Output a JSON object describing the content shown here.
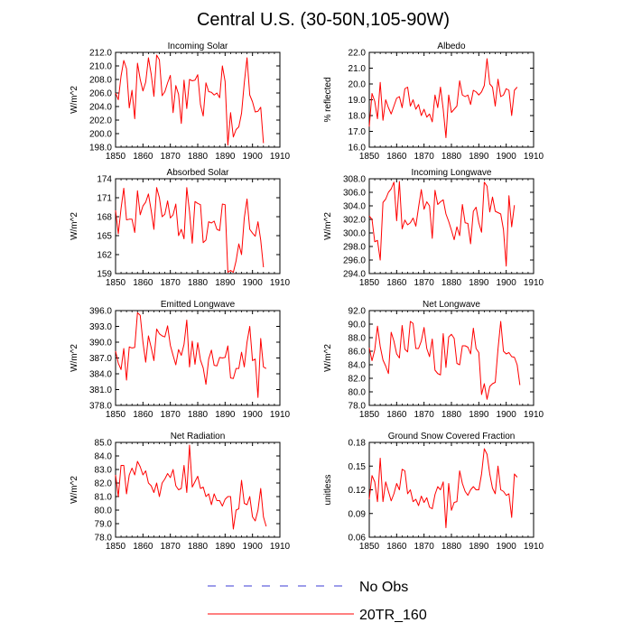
{
  "title": "Central U.S. (30-50N,105-90W)",
  "legend": {
    "items": [
      {
        "label": "No Obs",
        "color": "#3b3bd6",
        "dashed": true
      },
      {
        "label": "20TR_160",
        "color": "#ff0000",
        "dashed": false
      }
    ]
  },
  "chart_data": [
    {
      "type": "line",
      "title": "Incoming Solar",
      "xlabel": "",
      "ylabel": "W/m^2",
      "xlim": [
        1850,
        1910
      ],
      "xticks": [
        1850,
        1860,
        1870,
        1880,
        1890,
        1900,
        1910
      ],
      "ylim": [
        198,
        212
      ],
      "yticks": [
        198.0,
        200.0,
        202.0,
        204.0,
        206.0,
        208.0,
        210.0,
        212.0
      ],
      "ytick_decimals": 1,
      "series": [
        {
          "name": "20TR_160",
          "color": "#ff0000",
          "x_start": 1850,
          "x_step": 1,
          "values": [
            206.0,
            205.0,
            208.5,
            210.8,
            209.6,
            203.8,
            206.4,
            202.2,
            210.4,
            208.0,
            206.3,
            207.6,
            211.2,
            208.8,
            205.5,
            211.6,
            210.9,
            205.6,
            206.2,
            207.5,
            208.6,
            203.1,
            207.1,
            205.8,
            201.5,
            207.9,
            203.7,
            208.0,
            207.8,
            207.9,
            208.7,
            204.3,
            202.6,
            207.5,
            206.2,
            206.1,
            205.7,
            206.0,
            205.3,
            210.0,
            207.7,
            198.3,
            203.1,
            199.5,
            200.6,
            201.0,
            203.0,
            207.5,
            211.2,
            205.7,
            204.7,
            203.2,
            203.3,
            203.9,
            198.6
          ]
        }
      ]
    },
    {
      "type": "line",
      "title": "Albedo",
      "xlabel": "",
      "ylabel": "% reflected",
      "xlim": [
        1850,
        1910
      ],
      "xticks": [
        1850,
        1860,
        1870,
        1880,
        1890,
        1900,
        1910
      ],
      "ylim": [
        16,
        22
      ],
      "yticks": [
        16.0,
        17.0,
        18.0,
        19.0,
        20.0,
        21.0,
        22.0
      ],
      "ytick_decimals": 1,
      "series": [
        {
          "name": "20TR_160",
          "color": "#ff0000",
          "x_start": 1850,
          "x_step": 1,
          "values": [
            17.3,
            19.4,
            18.9,
            17.8,
            20.1,
            17.7,
            19.0,
            18.5,
            18.1,
            18.6,
            19.1,
            19.2,
            18.5,
            19.7,
            19.8,
            18.6,
            19.0,
            18.4,
            18.7,
            18.0,
            18.4,
            17.9,
            18.1,
            17.6,
            19.3,
            18.5,
            19.8,
            18.4,
            16.6,
            19.3,
            18.2,
            18.4,
            18.6,
            20.2,
            19.3,
            19.2,
            19.3,
            18.7,
            19.6,
            19.5,
            19.3,
            19.5,
            19.9,
            21.6,
            20.0,
            19.8,
            18.6,
            20.3,
            19.2,
            19.3,
            19.7,
            19.6,
            18.0,
            19.6,
            19.8
          ]
        }
      ]
    },
    {
      "type": "line",
      "title": "Absorbed Solar",
      "xlabel": "",
      "ylabel": "W/m^2",
      "xlim": [
        1850,
        1910
      ],
      "xticks": [
        1850,
        1860,
        1870,
        1880,
        1890,
        1900,
        1910
      ],
      "ylim": [
        159,
        174
      ],
      "yticks": [
        159,
        162,
        165,
        168,
        171,
        174
      ],
      "ytick_decimals": 0,
      "series": [
        {
          "name": "20TR_160",
          "color": "#ff0000",
          "x_start": 1850,
          "x_step": 1,
          "values": [
            169.0,
            165.3,
            169.3,
            172.5,
            167.5,
            167.6,
            167.6,
            165.5,
            172.1,
            168.3,
            169.7,
            170.3,
            171.6,
            169.0,
            166.0,
            172.6,
            171.0,
            168.0,
            168.4,
            170.5,
            167.8,
            168.3,
            170.0,
            165.0,
            166.0,
            164.5,
            172.6,
            168.8,
            163.8,
            170.4,
            170.1,
            169.9,
            163.9,
            164.3,
            167.2,
            167.0,
            167.3,
            166.0,
            165.8,
            170.0,
            169.9,
            159.2,
            159.5,
            159.2,
            161.0,
            163.7,
            162.0,
            167.8,
            170.8,
            166.0,
            165.4,
            164.9,
            167.2,
            164.3,
            160.0
          ]
        }
      ]
    },
    {
      "type": "line",
      "title": "Incoming Longwave",
      "xlabel": "",
      "ylabel": "W/m^2",
      "xlim": [
        1850,
        1910
      ],
      "xticks": [
        1850,
        1860,
        1870,
        1880,
        1890,
        1900,
        1910
      ],
      "ylim": [
        294,
        308
      ],
      "yticks": [
        294.0,
        296.0,
        298.0,
        300.0,
        302.0,
        304.0,
        306.0,
        308.0
      ],
      "ytick_decimals": 1,
      "series": [
        {
          "name": "20TR_160",
          "color": "#ff0000",
          "x_start": 1850,
          "x_step": 1,
          "values": [
            302.5,
            302.0,
            298.7,
            298.9,
            296.0,
            304.5,
            305.0,
            306.0,
            306.5,
            307.5,
            301.8,
            307.6,
            300.6,
            301.9,
            301.2,
            301.5,
            302.2,
            301.0,
            303.8,
            306.4,
            303.5,
            304.6,
            304.0,
            299.2,
            306.3,
            304.2,
            304.6,
            304.9,
            302.8,
            301.7,
            300.4,
            299.0,
            300.9,
            299.6,
            304.2,
            301.5,
            301.4,
            298.4,
            303.2,
            303.8,
            301.5,
            300.1,
            307.5,
            306.9,
            303.1,
            305.3,
            303.2,
            303.0,
            302.8,
            300.5,
            295.1,
            305.5,
            300.9,
            304.1
          ]
        }
      ]
    },
    {
      "type": "line",
      "title": "Emitted Longwave",
      "xlabel": "",
      "ylabel": "W/m^2",
      "xlim": [
        1850,
        1910
      ],
      "xticks": [
        1850,
        1860,
        1870,
        1880,
        1890,
        1900,
        1910
      ],
      "ylim": [
        378,
        396
      ],
      "yticks": [
        378.0,
        381.0,
        384.0,
        387.0,
        390.0,
        393.0,
        396.0
      ],
      "ytick_decimals": 1,
      "series": [
        {
          "name": "20TR_160",
          "color": "#ff0000",
          "x_start": 1850,
          "x_step": 1,
          "values": [
            388.3,
            386.0,
            384.8,
            388.8,
            382.8,
            389.1,
            388.9,
            389.0,
            395.6,
            395.1,
            390.0,
            386.2,
            391.2,
            389.0,
            386.5,
            392.5,
            391.6,
            391.2,
            391.0,
            393.1,
            389.4,
            387.5,
            385.7,
            388.6,
            387.5,
            389.6,
            394.2,
            385.3,
            390.2,
            385.8,
            389.9,
            386.6,
            385.1,
            382.0,
            386.8,
            388.5,
            385.6,
            385.5,
            387.1,
            387.0,
            387.1,
            389.3,
            383.2,
            383.1,
            385.0,
            385.0,
            388.1,
            385.3,
            390.0,
            393.0,
            386.5,
            386.8,
            379.5,
            390.7,
            385.3,
            385.0
          ]
        }
      ]
    },
    {
      "type": "line",
      "title": "Net Longwave",
      "xlabel": "",
      "ylabel": "W/m^2",
      "xlim": [
        1850,
        1910
      ],
      "xticks": [
        1850,
        1860,
        1870,
        1880,
        1890,
        1900,
        1910
      ],
      "ylim": [
        78,
        92
      ],
      "yticks": [
        78.0,
        80.0,
        82.0,
        84.0,
        86.0,
        88.0,
        90.0,
        92.0
      ],
      "ytick_decimals": 1,
      "series": [
        {
          "name": "20TR_160",
          "color": "#ff0000",
          "x_start": 1850,
          "x_step": 1,
          "values": [
            86.5,
            84.6,
            86.2,
            89.7,
            86.7,
            84.7,
            83.8,
            82.7,
            88.8,
            87.5,
            85.6,
            85.0,
            89.8,
            86.3,
            85.9,
            90.4,
            90.1,
            86.4,
            86.4,
            87.5,
            89.5,
            86.4,
            85.2,
            87.8,
            83.2,
            82.7,
            82.5,
            88.6,
            83.6,
            88.1,
            88.5,
            87.9,
            84.2,
            84.0,
            86.8,
            86.8,
            86.6,
            85.6,
            89.4,
            86.4,
            85.8,
            79.6,
            81.2,
            78.9,
            80.8,
            81.2,
            81.4,
            86.3,
            90.4,
            86.0,
            85.6,
            85.8,
            85.2,
            85.1,
            84.0,
            81.0
          ]
        }
      ]
    },
    {
      "type": "line",
      "title": "Net Radiation",
      "xlabel": "",
      "ylabel": "W/m^2",
      "xlim": [
        1850,
        1910
      ],
      "xticks": [
        1850,
        1860,
        1870,
        1880,
        1890,
        1900,
        1910
      ],
      "ylim": [
        78,
        85
      ],
      "yticks": [
        78.0,
        79.0,
        80.0,
        81.0,
        82.0,
        83.0,
        84.0,
        85.0
      ],
      "ytick_decimals": 1,
      "series": [
        {
          "name": "20TR_160",
          "color": "#ff0000",
          "x_start": 1850,
          "x_step": 1,
          "values": [
            82.6,
            81.0,
            83.3,
            83.3,
            81.2,
            82.6,
            83.1,
            82.6,
            83.6,
            83.2,
            82.6,
            82.9,
            82.0,
            81.8,
            81.3,
            82.0,
            81.0,
            82.0,
            82.3,
            82.7,
            82.4,
            83.0,
            81.8,
            81.5,
            81.6,
            83.3,
            81.3,
            84.8,
            81.7,
            82.1,
            82.5,
            81.6,
            81.7,
            81.0,
            81.2,
            80.4,
            81.2,
            80.7,
            80.7,
            80.3,
            80.8,
            81.0,
            81.0,
            78.6,
            80.0,
            80.1,
            82.2,
            80.5,
            80.4,
            81.0,
            79.5,
            79.2,
            80.0,
            81.6,
            79.5,
            78.8
          ]
        }
      ]
    },
    {
      "type": "line",
      "title": "Ground Snow Covered Fraction",
      "xlabel": "",
      "ylabel": "unitless",
      "xlim": [
        1850,
        1910
      ],
      "xticks": [
        1850,
        1860,
        1870,
        1880,
        1890,
        1900,
        1910
      ],
      "ylim": [
        0.06,
        0.18
      ],
      "yticks": [
        0.06,
        0.09,
        0.12,
        0.15,
        0.18
      ],
      "ytick_decimals": 2,
      "series": [
        {
          "name": "20TR_160",
          "color": "#ff0000",
          "x_start": 1850,
          "x_step": 1,
          "values": [
            0.108,
            0.138,
            0.13,
            0.105,
            0.16,
            0.105,
            0.13,
            0.118,
            0.106,
            0.115,
            0.128,
            0.12,
            0.146,
            0.144,
            0.115,
            0.12,
            0.105,
            0.108,
            0.1,
            0.112,
            0.104,
            0.11,
            0.098,
            0.096,
            0.114,
            0.124,
            0.12,
            0.13,
            0.072,
            0.128,
            0.094,
            0.104,
            0.105,
            0.144,
            0.128,
            0.118,
            0.113,
            0.12,
            0.124,
            0.12,
            0.12,
            0.14,
            0.172,
            0.165,
            0.14,
            0.122,
            0.115,
            0.15,
            0.12,
            0.118,
            0.113,
            0.115,
            0.085,
            0.14,
            0.136
          ]
        }
      ]
    }
  ]
}
